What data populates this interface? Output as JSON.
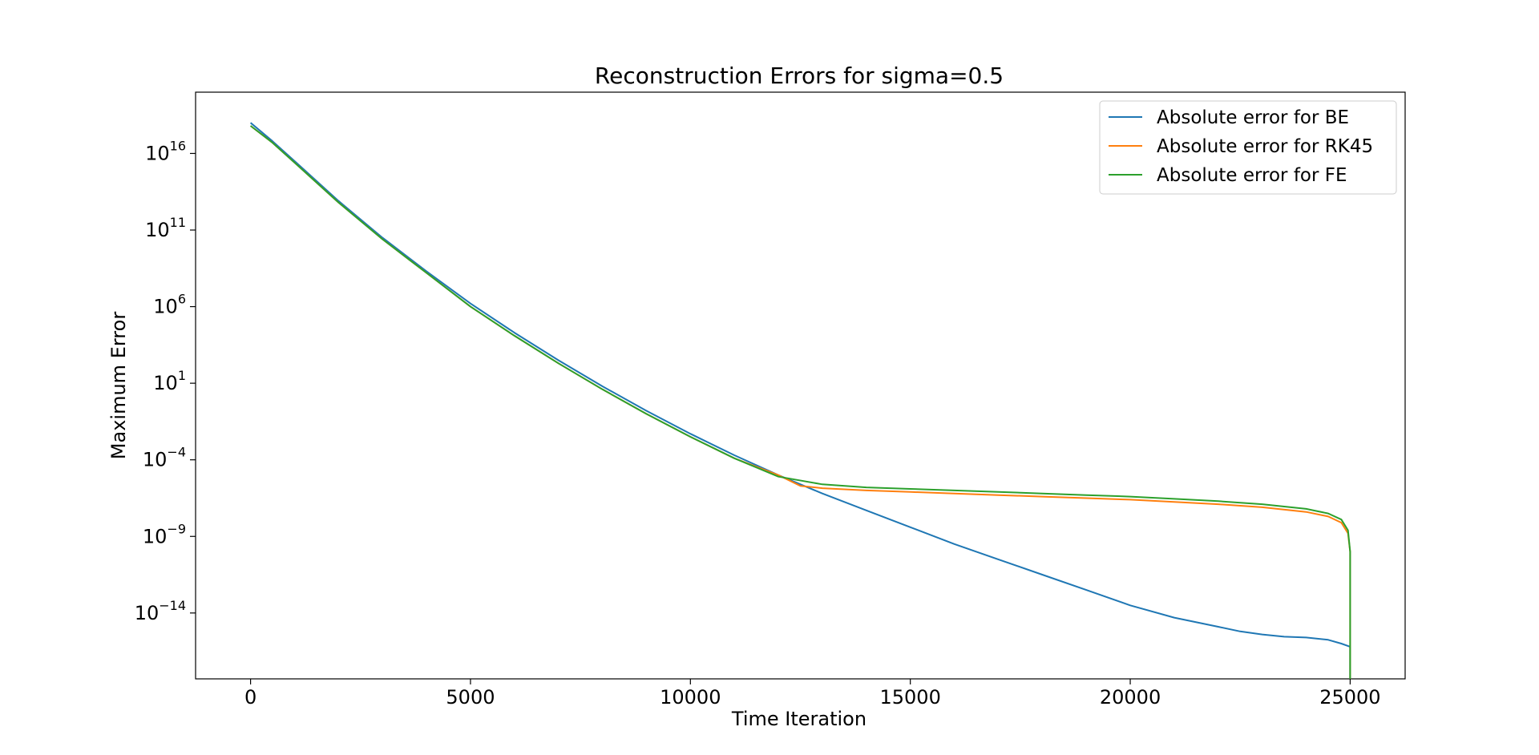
{
  "chart_data": {
    "type": "line",
    "title": "Reconstruction Errors for sigma=0.5",
    "xlabel": "Time Iteration",
    "ylabel": "Maximum Error",
    "xlim": [
      -1250,
      26250
    ],
    "ylim_log10": [
      -18.3,
      20.0
    ],
    "yscale": "log",
    "grid": false,
    "legend_position": "top-right",
    "x_ticks": [
      {
        "value": 0,
        "label": "0"
      },
      {
        "value": 5000,
        "label": "5000"
      },
      {
        "value": 10000,
        "label": "10000"
      },
      {
        "value": 15000,
        "label": "15000"
      },
      {
        "value": 20000,
        "label": "20000"
      },
      {
        "value": 25000,
        "label": "25000"
      }
    ],
    "y_ticks": [
      {
        "exp": 16,
        "base": "10",
        "sup": "16"
      },
      {
        "exp": 11,
        "base": "10",
        "sup": "11"
      },
      {
        "exp": 6,
        "base": "10",
        "sup": "6"
      },
      {
        "exp": 1,
        "base": "10",
        "sup": "1"
      },
      {
        "exp": -4,
        "base": "10",
        "sup": "−4"
      },
      {
        "exp": -9,
        "base": "10",
        "sup": "−9"
      },
      {
        "exp": -14,
        "base": "10",
        "sup": "−14"
      }
    ],
    "series": [
      {
        "name": "Absolute error for BE",
        "color": "#1f77b4",
        "points_log10": [
          [
            0,
            18.0
          ],
          [
            500,
            16.8
          ],
          [
            1000,
            15.5
          ],
          [
            2000,
            12.9
          ],
          [
            3000,
            10.5
          ],
          [
            4000,
            8.3
          ],
          [
            5000,
            6.2
          ],
          [
            6000,
            4.3
          ],
          [
            7000,
            2.5
          ],
          [
            8000,
            0.8
          ],
          [
            9000,
            -0.8
          ],
          [
            10000,
            -2.3
          ],
          [
            11000,
            -3.7
          ],
          [
            12000,
            -5.0
          ],
          [
            13000,
            -6.2
          ],
          [
            14000,
            -7.3
          ],
          [
            15000,
            -8.4
          ],
          [
            16000,
            -9.5
          ],
          [
            17000,
            -10.5
          ],
          [
            18000,
            -11.5
          ],
          [
            19000,
            -12.5
          ],
          [
            20000,
            -13.5
          ],
          [
            21000,
            -14.3
          ],
          [
            22000,
            -14.9
          ],
          [
            22500,
            -15.2
          ],
          [
            23000,
            -15.4
          ],
          [
            23500,
            -15.55
          ],
          [
            24000,
            -15.6
          ],
          [
            24500,
            -15.75
          ],
          [
            24800,
            -16.0
          ],
          [
            25000,
            -16.2
          ],
          [
            25000,
            -18.3
          ]
        ]
      },
      {
        "name": "Absolute error for RK45",
        "color": "#ff7f0e",
        "points_log10": [
          [
            0,
            17.8
          ],
          [
            500,
            16.7
          ],
          [
            1000,
            15.4
          ],
          [
            2000,
            12.8
          ],
          [
            3000,
            10.4
          ],
          [
            4000,
            8.2
          ],
          [
            5000,
            6.0
          ],
          [
            6000,
            4.1
          ],
          [
            7000,
            2.3
          ],
          [
            8000,
            0.6
          ],
          [
            9000,
            -1.0
          ],
          [
            10000,
            -2.5
          ],
          [
            11000,
            -3.9
          ],
          [
            12000,
            -5.0
          ],
          [
            12500,
            -5.7
          ],
          [
            13000,
            -5.85
          ],
          [
            14000,
            -6.0
          ],
          [
            15000,
            -6.1
          ],
          [
            16000,
            -6.2
          ],
          [
            17000,
            -6.3
          ],
          [
            18000,
            -6.4
          ],
          [
            19000,
            -6.5
          ],
          [
            20000,
            -6.6
          ],
          [
            21000,
            -6.75
          ],
          [
            22000,
            -6.9
          ],
          [
            23000,
            -7.1
          ],
          [
            24000,
            -7.4
          ],
          [
            24500,
            -7.7
          ],
          [
            24800,
            -8.1
          ],
          [
            24950,
            -8.8
          ],
          [
            25000,
            -10.0
          ],
          [
            25000,
            -18.3
          ]
        ]
      },
      {
        "name": "Absolute error for FE",
        "color": "#2ca02c",
        "points_log10": [
          [
            0,
            17.8
          ],
          [
            500,
            16.7
          ],
          [
            1000,
            15.4
          ],
          [
            2000,
            12.8
          ],
          [
            3000,
            10.4
          ],
          [
            4000,
            8.2
          ],
          [
            5000,
            6.0
          ],
          [
            6000,
            4.1
          ],
          [
            7000,
            2.3
          ],
          [
            8000,
            0.6
          ],
          [
            9000,
            -1.0
          ],
          [
            10000,
            -2.5
          ],
          [
            11000,
            -3.9
          ],
          [
            12000,
            -5.1
          ],
          [
            13000,
            -5.6
          ],
          [
            14000,
            -5.8
          ],
          [
            15000,
            -5.9
          ],
          [
            16000,
            -6.0
          ],
          [
            17000,
            -6.1
          ],
          [
            18000,
            -6.2
          ],
          [
            19000,
            -6.3
          ],
          [
            20000,
            -6.4
          ],
          [
            21000,
            -6.55
          ],
          [
            22000,
            -6.7
          ],
          [
            23000,
            -6.9
          ],
          [
            24000,
            -7.2
          ],
          [
            24500,
            -7.5
          ],
          [
            24800,
            -7.9
          ],
          [
            24950,
            -8.6
          ],
          [
            25000,
            -10.0
          ],
          [
            25000,
            -18.3
          ]
        ]
      }
    ]
  }
}
